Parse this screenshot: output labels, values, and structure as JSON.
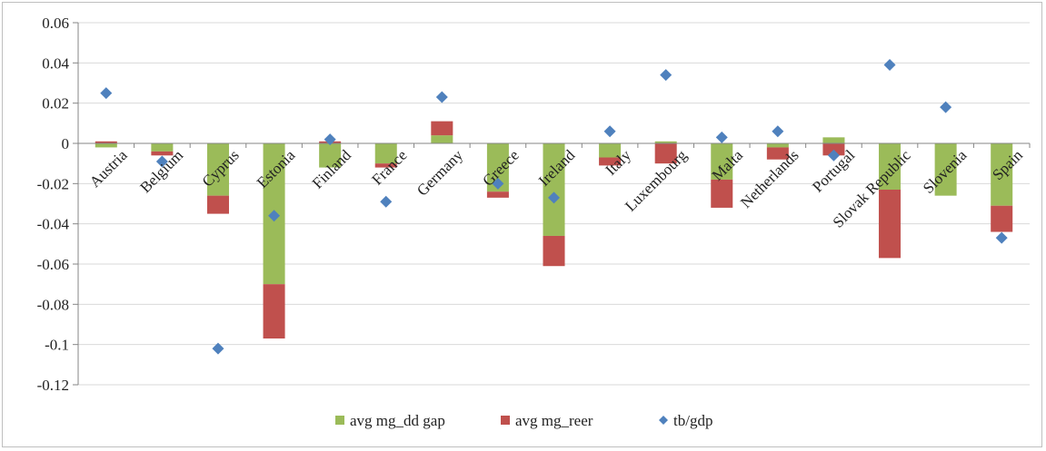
{
  "chart_data": {
    "type": "bar",
    "stacked": true,
    "categories": [
      "Austria",
      "Belgium",
      "Cyprus",
      "Estonia",
      "Finland",
      "France",
      "Germany",
      "Greece",
      "Ireland",
      "Italy",
      "Luxembourg",
      "Malta",
      "Netherlands",
      "Portugal",
      "Slovak Republic",
      "Slovenia",
      "Spain"
    ],
    "series": [
      {
        "name": "avg mg_dd gap",
        "kind": "bar",
        "color": "#9bbb59",
        "values": [
          -0.002,
          -0.004,
          -0.026,
          -0.07,
          -0.012,
          -0.01,
          0.004,
          -0.024,
          -0.046,
          -0.007,
          0.001,
          -0.018,
          -0.002,
          0.003,
          -0.023,
          -0.026,
          -0.031
        ]
      },
      {
        "name": "avg mg_reer",
        "kind": "bar",
        "color": "#c0504d",
        "values": [
          0.001,
          -0.002,
          -0.009,
          -0.027,
          0.001,
          -0.002,
          0.007,
          -0.003,
          -0.015,
          -0.004,
          -0.01,
          -0.014,
          -0.006,
          -0.006,
          -0.034,
          0.0,
          -0.013
        ]
      },
      {
        "name": "tb/gdp",
        "kind": "marker",
        "color": "#4f81bd",
        "values": [
          0.025,
          -0.009,
          -0.102,
          -0.036,
          0.002,
          -0.029,
          0.023,
          -0.02,
          -0.027,
          0.006,
          0.034,
          0.003,
          0.006,
          -0.006,
          0.039,
          0.018,
          -0.047
        ]
      }
    ],
    "y_ticks": [
      "0.06",
      "0.04",
      "0.02",
      "0",
      "-0.02",
      "-0.04",
      "-0.06",
      "-0.08",
      "-0.1",
      "-0.12"
    ],
    "ylim": [
      -0.12,
      0.06
    ],
    "grid": true,
    "legend_position": "bottom",
    "colors": {
      "axis": "#868686",
      "grid": "#d9d9d9"
    }
  }
}
